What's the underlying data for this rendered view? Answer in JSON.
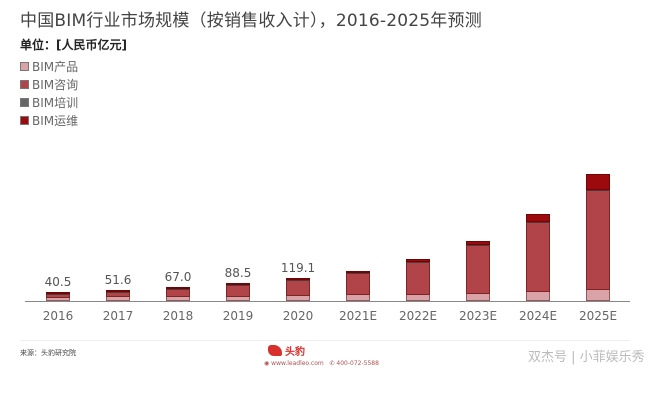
{
  "title": "中国BIM行业市场规模（按销售收入计），2016-2025年预测",
  "unit": "单位：[人民币亿元]",
  "legend": [
    {
      "label": "BIM产品",
      "color": "#d9a3a8"
    },
    {
      "label": "BIM咨询",
      "color": "#b04448"
    },
    {
      "label": "BIM培训",
      "color": "#666666"
    },
    {
      "label": "BIM运维",
      "color": "#9c0a0e"
    }
  ],
  "footer": {
    "source": "来源：头豹研究院",
    "logo_text": "头豹",
    "website": "www.leadleo.com",
    "phone": "400-072-5588",
    "watermark": "双杰号 | 小菲娱乐秀"
  },
  "chart_data": {
    "type": "bar",
    "stacked": true,
    "title": "中国BIM行业市场规模（按销售收入计），2016-2025年预测",
    "ylabel": "人民币亿元",
    "xlabel": "",
    "categories": [
      "2016",
      "2017",
      "2018",
      "2019",
      "2020",
      "2021E",
      "2022E",
      "2023E",
      "2024E",
      "2025E"
    ],
    "totals_labeled": [
      40.5,
      51.6,
      67.0,
      88.5,
      119.1,
      null,
      null,
      null,
      null,
      null
    ],
    "totals_estimated": [
      40.5,
      51.6,
      67.0,
      88.5,
      119.1,
      164,
      232,
      335,
      488,
      714
    ],
    "series": [
      {
        "name": "BIM产品",
        "color": "#d9a3a8",
        "values": [
          18,
          20,
          23,
          25,
          28,
          32,
          36,
          42,
          50,
          62
        ]
      },
      {
        "name": "BIM咨询",
        "color": "#b04448",
        "values": [
          18,
          26,
          38,
          58,
          84,
          120,
          180,
          270,
          390,
          560
        ]
      },
      {
        "name": "BIM培训",
        "color": "#666666",
        "values": [
          1,
          1,
          1,
          1,
          1,
          1,
          1,
          1,
          1,
          1
        ]
      },
      {
        "name": "BIM运维",
        "color": "#9c0a0e",
        "values": [
          3.5,
          4.6,
          5.0,
          4.5,
          6.1,
          11,
          15,
          22,
          47,
          91
        ]
      }
    ],
    "ylim": [
      0,
      750
    ],
    "grid": false,
    "legend_position": "top-left"
  }
}
